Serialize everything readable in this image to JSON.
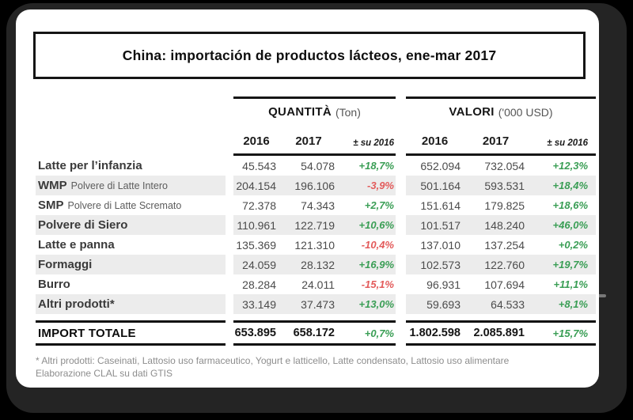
{
  "title": "China: importación de productos lácteos, ene-mar 2017",
  "table": {
    "groups": [
      {
        "name": "QUANTITÀ",
        "unit": "(Ton)"
      },
      {
        "name": "VALORI",
        "unit": "('000 USD)"
      }
    ],
    "subheaders": {
      "y2016": "2016",
      "y2017": "2017",
      "delta": "± su 2016"
    },
    "rows": [
      {
        "label": "Latte per l’infanzia",
        "label_suffix": "",
        "shaded": false,
        "q2016": "45.543",
        "q2017": "54.078",
        "qpct": "+18,7%",
        "v2016": "652.094",
        "v2017": "732.054",
        "vpct": "+12,3%"
      },
      {
        "label": "WMP",
        "label_suffix": "Polvere di Latte Intero",
        "shaded": true,
        "q2016": "204.154",
        "q2017": "196.106",
        "qpct": "-3,9%",
        "v2016": "501.164",
        "v2017": "593.531",
        "vpct": "+18,4%"
      },
      {
        "label": "SMP",
        "label_suffix": "Polvere di Latte Scremato",
        "shaded": false,
        "q2016": "72.378",
        "q2017": "74.343",
        "qpct": "+2,7%",
        "v2016": "151.614",
        "v2017": "179.825",
        "vpct": "+18,6%"
      },
      {
        "label": "Polvere di Siero",
        "label_suffix": "",
        "shaded": true,
        "q2016": "110.961",
        "q2017": "122.719",
        "qpct": "+10,6%",
        "v2016": "101.517",
        "v2017": "148.240",
        "vpct": "+46,0%"
      },
      {
        "label": "Latte e panna",
        "label_suffix": "",
        "shaded": false,
        "q2016": "135.369",
        "q2017": "121.310",
        "qpct": "-10,4%",
        "v2016": "137.010",
        "v2017": "137.254",
        "vpct": "+0,2%"
      },
      {
        "label": "Formaggi",
        "label_suffix": "",
        "shaded": true,
        "q2016": "24.059",
        "q2017": "28.132",
        "qpct": "+16,9%",
        "v2016": "102.573",
        "v2017": "122.760",
        "vpct": "+19,7%"
      },
      {
        "label": "Burro",
        "label_suffix": "",
        "shaded": false,
        "q2016": "28.284",
        "q2017": "24.011",
        "qpct": "-15,1%",
        "v2016": "96.931",
        "v2017": "107.694",
        "vpct": "+11,1%"
      },
      {
        "label": "Altri prodotti*",
        "label_suffix": "",
        "shaded": true,
        "q2016": "33.149",
        "q2017": "37.473",
        "qpct": "+13,0%",
        "v2016": "59.693",
        "v2017": "64.533",
        "vpct": "+8,1%"
      }
    ],
    "total": {
      "label": "IMPORT TOTALE",
      "q2016": "653.895",
      "q2017": "658.172",
      "qpct": "+0,7%",
      "v2016": "1.802.598",
      "v2017": "2.085.891",
      "vpct": "+15,7%"
    }
  },
  "footnote": {
    "line1": "* Altri prodotti: Caseinati, Lattosio uso farmaceutico, Yogurt e latticello, Latte condensato, Lattosio uso alimentare",
    "line2": "Elaborazione CLAL su dati GTIS"
  },
  "colors": {
    "positive": "#3a9e55",
    "negative": "#e35b5b",
    "stripe": "#ececec"
  },
  "chart_data": {
    "type": "table",
    "title": "China: importación de productos lácteos, ene-mar 2017",
    "column_groups": [
      {
        "label": "QUANTITÀ (Ton)",
        "columns": [
          "2016",
          "2017",
          "± su 2016"
        ]
      },
      {
        "label": "VALORI ('000 USD)",
        "columns": [
          "2016",
          "2017",
          "± su 2016"
        ]
      }
    ],
    "rows": [
      [
        "Latte per l’infanzia",
        45543,
        54078,
        "+18,7%",
        652094,
        732054,
        "+12,3%"
      ],
      [
        "WMP Polvere di Latte Intero",
        204154,
        196106,
        "-3,9%",
        501164,
        593531,
        "+18,4%"
      ],
      [
        "SMP Polvere di Latte Scremato",
        72378,
        74343,
        "+2,7%",
        151614,
        179825,
        "+18,6%"
      ],
      [
        "Polvere di Siero",
        110961,
        122719,
        "+10,6%",
        101517,
        148240,
        "+46,0%"
      ],
      [
        "Latte e panna",
        135369,
        121310,
        "-10,4%",
        137010,
        137254,
        "+0,2%"
      ],
      [
        "Formaggi",
        24059,
        28132,
        "+16,9%",
        102573,
        122760,
        "+19,7%"
      ],
      [
        "Burro",
        28284,
        24011,
        "-15,1%",
        96931,
        107694,
        "+11,1%"
      ],
      [
        "Altri prodotti*",
        33149,
        37473,
        "+13,0%",
        59693,
        64533,
        "+8,1%"
      ],
      [
        "IMPORT TOTALE",
        653895,
        658172,
        "+0,7%",
        1802598,
        2085891,
        "+15,7%"
      ]
    ],
    "notes": [
      "* Altri prodotti: Caseinati, Lattosio uso farmaceutico, Yogurt e latticello, Latte condensato, Lattosio uso alimentare",
      "Elaborazione CLAL su dati GTIS"
    ]
  }
}
